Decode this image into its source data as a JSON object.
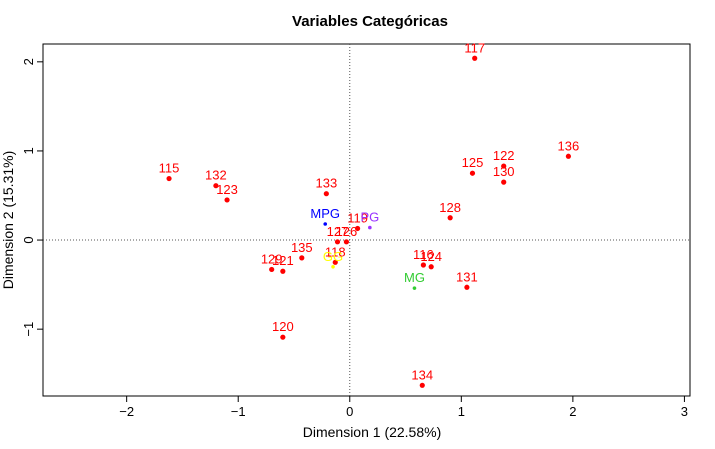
{
  "chart_data": {
    "type": "scatter",
    "title": "Variables Categóricas",
    "xlabel": "Dimension 1 (22.58%)",
    "ylabel": "Dimension 2 (15.31%)",
    "xlim": [
      -2.75,
      3.05
    ],
    "ylim": [
      -1.75,
      2.2
    ],
    "xticks": [
      "-2",
      "-1",
      "0",
      "1",
      "2",
      "3"
    ],
    "yticks": [
      "-1",
      "0",
      "1",
      "2"
    ],
    "xtick_values": [
      -2,
      -1,
      0,
      1,
      2,
      3
    ],
    "ytick_values": [
      -1,
      0,
      1,
      2
    ],
    "reference_lines": {
      "x": 0,
      "y": 0,
      "style": "dotted"
    },
    "colors": {
      "individuals": "#ff0000",
      "MPG": "#0000ff",
      "PG": "#9933ff",
      "GG": "#ffff00",
      "MG": "#33cc33"
    },
    "series": [
      {
        "name": "individuals",
        "color": "#ff0000",
        "points": [
          {
            "label": "117",
            "x": 1.12,
            "y": 2.04
          },
          {
            "label": "136",
            "x": 1.96,
            "y": 0.94
          },
          {
            "label": "115",
            "x": -1.62,
            "y": 0.69
          },
          {
            "label": "132",
            "x": -1.2,
            "y": 0.61
          },
          {
            "label": "123",
            "x": -1.1,
            "y": 0.45
          },
          {
            "label": "125",
            "x": 1.1,
            "y": 0.75
          },
          {
            "label": "122",
            "x": 1.38,
            "y": 0.83
          },
          {
            "label": "130",
            "x": 1.38,
            "y": 0.65
          },
          {
            "label": "133",
            "x": -0.21,
            "y": 0.52
          },
          {
            "label": "128",
            "x": 0.9,
            "y": 0.25
          },
          {
            "label": "119",
            "x": 0.07,
            "y": 0.13
          },
          {
            "label": "127",
            "x": -0.11,
            "y": -0.02
          },
          {
            "label": "126",
            "x": -0.03,
            "y": -0.02
          },
          {
            "label": "135",
            "x": -0.43,
            "y": -0.2
          },
          {
            "label": "118",
            "x": -0.13,
            "y": -0.25
          },
          {
            "label": "129",
            "x": -0.7,
            "y": -0.33
          },
          {
            "label": "121",
            "x": -0.6,
            "y": -0.35
          },
          {
            "label": "116",
            "x": 0.66,
            "y": -0.28
          },
          {
            "label": "124",
            "x": 0.73,
            "y": -0.3
          },
          {
            "label": "131",
            "x": 1.05,
            "y": -0.53
          },
          {
            "label": "120",
            "x": -0.6,
            "y": -1.09
          },
          {
            "label": "134",
            "x": 0.65,
            "y": -1.63
          }
        ]
      },
      {
        "name": "categories",
        "points": [
          {
            "label": "MPG",
            "x": -0.22,
            "y": 0.18,
            "color": "#0000ff"
          },
          {
            "label": "PG",
            "x": 0.18,
            "y": 0.14,
            "color": "#9933ff"
          },
          {
            "label": "GG",
            "x": -0.15,
            "y": -0.3,
            "color": "#ffff00"
          },
          {
            "label": "MG",
            "x": 0.58,
            "y": -0.54,
            "color": "#33cc33"
          }
        ]
      }
    ]
  }
}
